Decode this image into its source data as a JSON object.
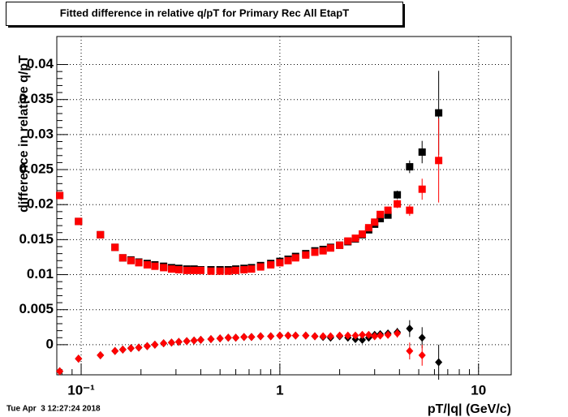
{
  "chart_data": {
    "type": "scatter",
    "title": "Fitted difference in relative q/pT for Primary Rec All EtapT",
    "x_label": "pT/|q| (GeV/c)",
    "y_label": "difference in relative q/pT",
    "timestamp": "Tue Apr  3 12:27:24 2018",
    "x_log": true,
    "grid": true,
    "xlim": [
      0.0754,
      14.6
    ],
    "ylim": [
      -0.0043,
      0.044
    ],
    "xticks": [
      {
        "value": 0.1,
        "label": "10⁻¹"
      },
      1,
      10
    ],
    "yticks": [
      0,
      0.005,
      0.01,
      0.015,
      0.02,
      0.025,
      0.03,
      0.035,
      0.04
    ],
    "x": [
      0.078,
      0.097,
      0.125,
      0.148,
      0.162,
      0.178,
      0.195,
      0.215,
      0.235,
      0.26,
      0.285,
      0.31,
      0.34,
      0.37,
      0.4,
      0.45,
      0.5,
      0.55,
      0.6,
      0.66,
      0.72,
      0.8,
      0.9,
      1.0,
      1.1,
      1.2,
      1.35,
      1.5,
      1.65,
      1.8,
      2.0,
      2.2,
      2.4,
      2.6,
      2.8,
      3.0,
      3.2,
      3.5,
      3.9,
      4.5,
      5.2,
      6.3
    ],
    "series": [
      {
        "color": "#000000",
        "marker": "square",
        "values": [
          0.0213,
          0.0176,
          0.0157,
          0.0139,
          0.0124,
          0.0121,
          0.0118,
          0.0116,
          0.0114,
          0.0112,
          0.011,
          0.0109,
          0.0108,
          0.0108,
          0.0107,
          0.0107,
          0.0107,
          0.0107,
          0.0108,
          0.0109,
          0.011,
          0.0113,
          0.0116,
          0.0119,
          0.0122,
          0.0126,
          0.013,
          0.0134,
          0.0136,
          0.0139,
          0.0142,
          0.0147,
          0.0151,
          0.0157,
          0.0164,
          0.0172,
          0.018,
          0.0185,
          0.0214,
          0.0254,
          0.0275,
          0.0331
        ],
        "errors": [
          0.0001,
          0.0001,
          0.0001,
          0.0001,
          0.0001,
          0.0001,
          0.0001,
          0.0001,
          0.0001,
          0.0001,
          0.0001,
          0.0001,
          0.0001,
          0.0001,
          0.0001,
          0.0001,
          0.0001,
          0.0001,
          0.0001,
          0.0001,
          0.0001,
          0.0001,
          0.0001,
          0.0001,
          0.0001,
          0.0001,
          0.0001,
          0.0001,
          0.0001,
          0.0001,
          0.0001,
          0.0002,
          0.0002,
          0.0002,
          0.0003,
          0.0003,
          0.0004,
          0.0005,
          0.0006,
          0.0009,
          0.0016,
          0.006
        ]
      },
      {
        "color": "#ff0000",
        "marker": "square",
        "values": [
          0.0213,
          0.0176,
          0.0157,
          0.0139,
          0.0124,
          0.012,
          0.0117,
          0.0114,
          0.0112,
          0.011,
          0.0108,
          0.0107,
          0.0106,
          0.0106,
          0.0106,
          0.0105,
          0.0105,
          0.0105,
          0.0106,
          0.0107,
          0.0108,
          0.0111,
          0.0114,
          0.0117,
          0.012,
          0.0124,
          0.0128,
          0.0132,
          0.0134,
          0.0138,
          0.0142,
          0.0148,
          0.0152,
          0.0158,
          0.0167,
          0.0175,
          0.0186,
          0.0192,
          0.0201,
          0.0192,
          0.0222,
          0.0263
        ],
        "errors": [
          0.0001,
          0.0001,
          0.0001,
          0.0001,
          0.0001,
          0.0001,
          0.0001,
          0.0001,
          0.0001,
          0.0001,
          0.0001,
          0.0001,
          0.0001,
          0.0001,
          0.0001,
          0.0001,
          0.0001,
          0.0001,
          0.0001,
          0.0001,
          0.0001,
          0.0001,
          0.0001,
          0.0001,
          0.0001,
          0.0001,
          0.0001,
          0.0001,
          0.0001,
          0.0001,
          0.0001,
          0.0002,
          0.0002,
          0.0002,
          0.0003,
          0.0003,
          0.0004,
          0.0005,
          0.0006,
          0.0008,
          0.0015,
          0.006
        ]
      },
      {
        "color": "#000000",
        "marker": "diamond",
        "values": [
          -0.0038,
          -0.002,
          -0.0015,
          -0.0009,
          -0.0007,
          -0.0005,
          -0.0004,
          -0.0002,
          0,
          0.0002,
          0.0003,
          0.0004,
          0.0005,
          0.0006,
          0.0007,
          0.0008,
          0.0009,
          0.001,
          0.001,
          0.0011,
          0.0011,
          0.0012,
          0.0012,
          0.0013,
          0.0013,
          0.0013,
          0.0013,
          0.0012,
          0.0011,
          0.001,
          0.0012,
          0.001,
          0.0008,
          0.0007,
          0.001,
          0.0014,
          0.0015,
          0.0016,
          0.0018,
          0.0023,
          0.001,
          -0.0025
        ],
        "errors": [
          0.0001,
          0.0001,
          0.0001,
          0.0001,
          0.0001,
          0.0001,
          0.0001,
          0.0001,
          0.0001,
          0.0001,
          0.0001,
          0.0001,
          0.0001,
          0.0001,
          0.0001,
          0.0001,
          0.0001,
          0.0001,
          0.0001,
          0.0001,
          0.0001,
          0.0001,
          0.0001,
          0.0001,
          0.0001,
          0.0001,
          0.0001,
          0.0001,
          0.0001,
          0.0001,
          0.0001,
          0.0001,
          0.0002,
          0.0002,
          0.0002,
          0.0002,
          0.0003,
          0.0004,
          0.0006,
          0.0012,
          0.0015,
          0.0025
        ]
      },
      {
        "color": "#ff0000",
        "marker": "diamond",
        "values": [
          -0.0038,
          -0.002,
          -0.0015,
          -0.0009,
          -0.0007,
          -0.0005,
          -0.0004,
          -0.0002,
          0,
          0.0002,
          0.0003,
          0.0004,
          0.0005,
          0.0006,
          0.0007,
          0.0008,
          0.0009,
          0.001,
          0.001,
          0.0011,
          0.0011,
          0.0012,
          0.0012,
          0.0013,
          0.0013,
          0.0013,
          0.0013,
          0.0012,
          0.0012,
          0.0012,
          0.0013,
          0.0013,
          0.0013,
          0.0014,
          0.0014,
          0.0012,
          0.0013,
          0.0014,
          0.0016,
          -0.0009,
          -0.0015,
          null
        ],
        "errors": [
          0.0001,
          0.0001,
          0.0001,
          0.0001,
          0.0001,
          0.0001,
          0.0001,
          0.0001,
          0.0001,
          0.0001,
          0.0001,
          0.0001,
          0.0001,
          0.0001,
          0.0001,
          0.0001,
          0.0001,
          0.0001,
          0.0001,
          0.0001,
          0.0001,
          0.0001,
          0.0001,
          0.0001,
          0.0001,
          0.0001,
          0.0001,
          0.0001,
          0.0001,
          0.0001,
          0.0001,
          0.0001,
          0.0002,
          0.0002,
          0.0002,
          0.0002,
          0.0003,
          0.0004,
          0.0006,
          0.0012,
          0.0015,
          null
        ]
      }
    ]
  }
}
